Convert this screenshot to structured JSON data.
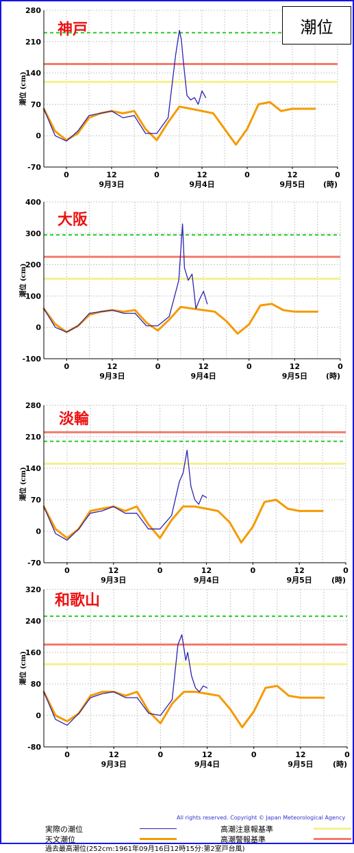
{
  "title": "潮位",
  "copyright": "All rights reserved. Copyright © Japan Meteorological Agency",
  "legend": {
    "observed": "実際の潮位",
    "astronomical": "天文潮位",
    "caution": "高潮注意報基準",
    "warning": "高潮警報基準",
    "record": "過去最高潮位(252cm:1961年09月16日12時15分:第2室戸台風)"
  },
  "colors": {
    "observed": "#2a22b0",
    "astronomical": "#f59a00",
    "caution": "#f5f08a",
    "warning": "#f37a6a",
    "record": "#22cc22",
    "frame": "#1515e8",
    "station_label": "#ee1111"
  },
  "x_tick_labels": [
    "0",
    "12",
    "0",
    "12",
    "0",
    "12",
    "0"
  ],
  "date_labels": [
    "9月3日",
    "9月4日",
    "9月5日"
  ],
  "hour_unit": "(時)",
  "chart_data": [
    {
      "type": "line",
      "station": "神戸",
      "ylabel": "潮位 (cm)",
      "x_unit": "hours since 2018-09-03 00:00 (axis ticks 0,12,0,12,0,12,0)",
      "xlim": [
        -6,
        72
      ],
      "ylim": [
        -70,
        280
      ],
      "yticks": [
        -70,
        0,
        70,
        140,
        210,
        280
      ],
      "thresholds": {
        "caution": 120,
        "warning": 160,
        "record": 230
      },
      "series": [
        {
          "name": "天文潮位",
          "x": [
            -6,
            -3,
            0,
            3,
            6,
            9,
            12,
            15,
            18,
            21,
            24,
            27,
            30,
            33,
            36,
            39,
            42,
            45,
            48,
            51,
            54,
            57,
            60,
            63,
            66
          ],
          "y": [
            60,
            10,
            -10,
            5,
            40,
            50,
            55,
            50,
            55,
            15,
            -10,
            30,
            65,
            60,
            55,
            50,
            15,
            -20,
            15,
            70,
            75,
            55,
            60,
            60,
            60
          ]
        },
        {
          "name": "実際の潮位",
          "x": [
            -6,
            -3,
            0,
            3,
            6,
            9,
            12,
            15,
            18,
            21,
            24,
            27,
            29,
            30,
            30.5,
            31,
            32,
            33,
            34,
            35,
            36,
            37
          ],
          "y": [
            60,
            0,
            -12,
            10,
            45,
            50,
            55,
            40,
            45,
            5,
            5,
            40,
            180,
            235,
            215,
            170,
            90,
            80,
            85,
            70,
            100,
            85
          ]
        }
      ]
    },
    {
      "type": "line",
      "station": "大阪",
      "ylabel": "潮位 (cm)",
      "x_unit": "hours since 2018-09-03 00:00 (axis ticks 0,12,0,12,0,12,0)",
      "xlim": [
        -6,
        72
      ],
      "ylim": [
        -100,
        400
      ],
      "yticks": [
        -100,
        0,
        100,
        200,
        300,
        400
      ],
      "thresholds": {
        "caution": 155,
        "warning": 225,
        "record": 295
      },
      "series": [
        {
          "name": "天文潮位",
          "x": [
            -6,
            -3,
            0,
            3,
            6,
            9,
            12,
            15,
            18,
            21,
            24,
            27,
            30,
            33,
            36,
            39,
            42,
            45,
            48,
            51,
            54,
            57,
            60,
            63,
            66
          ],
          "y": [
            60,
            10,
            -15,
            5,
            40,
            50,
            55,
            50,
            55,
            15,
            -10,
            25,
            65,
            60,
            55,
            50,
            20,
            -20,
            10,
            70,
            75,
            55,
            50,
            50,
            50
          ]
        },
        {
          "name": "実際の潮位",
          "x": [
            -6,
            -3,
            0,
            3,
            6,
            9,
            12,
            15,
            18,
            21,
            24,
            27,
            29.5,
            30.5,
            31,
            32,
            33,
            34,
            35,
            36,
            37
          ],
          "y": [
            60,
            0,
            -15,
            5,
            45,
            50,
            55,
            45,
            45,
            5,
            5,
            35,
            150,
            330,
            190,
            150,
            170,
            60,
            90,
            115,
            75
          ]
        }
      ]
    },
    {
      "type": "line",
      "station": "淡輪",
      "ylabel": "潮位 (cm)",
      "x_unit": "hours since 2018-09-03 00:00 (axis ticks 0,12,0,12,0,12,0)",
      "xlim": [
        -6,
        72
      ],
      "ylim": [
        -70,
        280
      ],
      "yticks": [
        -70,
        0,
        70,
        140,
        210,
        280
      ],
      "thresholds": {
        "caution": 150,
        "warning": 220,
        "record": 200
      },
      "series": [
        {
          "name": "天文潮位",
          "x": [
            -6,
            -3,
            0,
            3,
            6,
            9,
            12,
            15,
            18,
            21,
            24,
            27,
            30,
            33,
            36,
            39,
            42,
            45,
            48,
            51,
            54,
            57,
            60,
            63,
            66
          ],
          "y": [
            55,
            5,
            -15,
            5,
            45,
            50,
            55,
            45,
            55,
            15,
            -15,
            25,
            55,
            55,
            50,
            45,
            20,
            -25,
            10,
            65,
            70,
            50,
            45,
            45,
            45
          ]
        },
        {
          "name": "実際の潮位",
          "x": [
            -6,
            -3,
            0,
            3,
            6,
            9,
            12,
            15,
            18,
            21,
            24,
            27,
            29,
            30,
            31,
            32,
            33,
            34,
            35,
            36
          ],
          "y": [
            55,
            -5,
            -20,
            5,
            40,
            45,
            55,
            40,
            40,
            5,
            5,
            35,
            110,
            130,
            180,
            100,
            70,
            60,
            80,
            75
          ]
        }
      ]
    },
    {
      "type": "line",
      "station": "和歌山",
      "ylabel": "潮位 (cm)",
      "x_unit": "hours since 2018-09-03 00:00 (axis ticks 0,12,0,12,0,12,0)",
      "xlim": [
        -6,
        72
      ],
      "ylim": [
        -80,
        320
      ],
      "yticks": [
        -80,
        0,
        80,
        160,
        240,
        320
      ],
      "thresholds": {
        "caution": 130,
        "warning": 180,
        "record": 252
      },
      "series": [
        {
          "name": "天文潮位",
          "x": [
            -6,
            -3,
            0,
            3,
            6,
            9,
            12,
            15,
            18,
            21,
            24,
            27,
            30,
            33,
            36,
            39,
            42,
            45,
            48,
            51,
            54,
            57,
            60,
            63,
            66
          ],
          "y": [
            60,
            0,
            -15,
            5,
            50,
            60,
            60,
            50,
            60,
            10,
            -20,
            30,
            60,
            60,
            55,
            50,
            15,
            -30,
            10,
            70,
            75,
            50,
            45,
            45,
            45
          ]
        },
        {
          "name": "実際の潮位",
          "x": [
            -6,
            -3,
            0,
            3,
            6,
            9,
            12,
            15,
            18,
            21,
            24,
            27,
            28.5,
            29.5,
            30.5,
            31,
            32,
            33,
            34,
            35,
            36
          ],
          "y": [
            60,
            -10,
            -25,
            5,
            45,
            55,
            60,
            45,
            45,
            5,
            0,
            40,
            180,
            205,
            140,
            160,
            100,
            70,
            60,
            75,
            70
          ]
        }
      ]
    }
  ]
}
